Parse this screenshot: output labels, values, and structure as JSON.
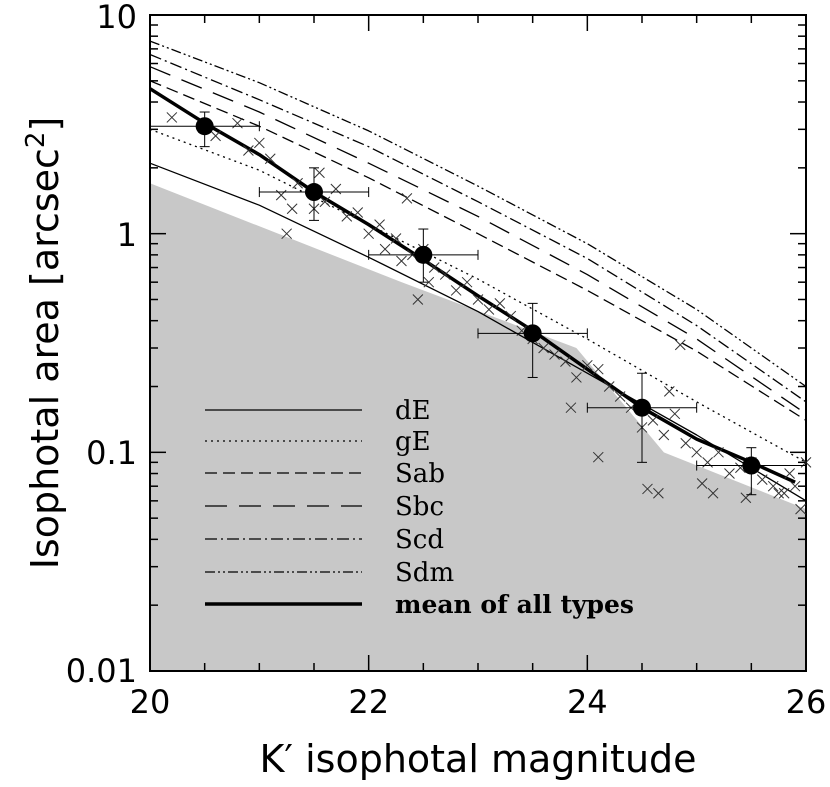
{
  "chart_data": {
    "type": "line",
    "xlabel": "K′ isophotal magnitude",
    "ylabel": "Isophotal area [arcsec",
    "ylabel_sup": "2",
    "ylabel_end": "]",
    "xlim": [
      20,
      26
    ],
    "ylim": [
      0.01,
      10
    ],
    "yscale": "log",
    "x_ticks": [
      20,
      22,
      24,
      26
    ],
    "x_tick_labels": [
      "20",
      "22",
      "24",
      "26"
    ],
    "y_ticks": [
      0.01,
      0.1,
      1,
      10
    ],
    "y_tick_labels": [
      "0.01",
      "0.1",
      "1",
      "10"
    ],
    "shaded_region": {
      "description": "excluded region",
      "boundary_x": [
        20,
        22.3,
        23.9,
        24.7,
        26
      ],
      "boundary_y": [
        1.7,
        0.6,
        0.3,
        0.1,
        0.055
      ]
    },
    "series": [
      {
        "name": "dE",
        "style": "solid",
        "width": 1.3,
        "x": [
          20,
          21,
          22,
          23,
          24,
          25,
          26
        ],
        "y": [
          2.1,
          1.35,
          0.78,
          0.44,
          0.23,
          0.12,
          0.06
        ]
      },
      {
        "name": "gE",
        "style": "dotted",
        "width": 1.3,
        "x": [
          20,
          21,
          22,
          23,
          24,
          25,
          26
        ],
        "y": [
          3.0,
          1.95,
          1.1,
          0.62,
          0.33,
          0.17,
          0.09
        ]
      },
      {
        "name": "Sab",
        "style": "dashed",
        "width": 1.3,
        "x": [
          20,
          21,
          22,
          23,
          24,
          25,
          26
        ],
        "y": [
          5.0,
          3.1,
          1.8,
          1.0,
          0.55,
          0.29,
          0.14
        ]
      },
      {
        "name": "Sbc",
        "style": "long-dashed",
        "width": 1.3,
        "x": [
          20,
          21,
          22,
          23,
          24,
          25,
          26
        ],
        "y": [
          5.8,
          3.6,
          2.1,
          1.2,
          0.65,
          0.33,
          0.15
        ]
      },
      {
        "name": "Scd",
        "style": "dash-dot",
        "width": 1.3,
        "x": [
          20,
          21,
          22,
          23,
          24,
          25,
          26
        ],
        "y": [
          6.6,
          4.1,
          2.5,
          1.4,
          0.77,
          0.38,
          0.17
        ]
      },
      {
        "name": "Sdm",
        "style": "dash-dot-dot",
        "width": 1.3,
        "x": [
          20,
          21,
          22,
          23,
          24,
          25,
          26
        ],
        "y": [
          7.6,
          4.9,
          2.95,
          1.65,
          0.9,
          0.45,
          0.2
        ]
      },
      {
        "name": "mean of all types",
        "style": "solid",
        "width": 3.5,
        "x": [
          20,
          20.5,
          21,
          21.5,
          22,
          22.5,
          23,
          23.5,
          24,
          24.5,
          25,
          25.5,
          25.9
        ],
        "y": [
          4.6,
          3.2,
          2.3,
          1.55,
          1.1,
          0.76,
          0.52,
          0.36,
          0.24,
          0.16,
          0.115,
          0.09,
          0.073
        ]
      }
    ],
    "binned_means": [
      {
        "x": 20.5,
        "y": 3.1,
        "xerr": 0.5,
        "ylow": 2.5,
        "yhigh": 3.6
      },
      {
        "x": 21.5,
        "y": 1.55,
        "xerr": 0.5,
        "ylow": 1.15,
        "yhigh": 2.0
      },
      {
        "x": 22.5,
        "y": 0.8,
        "xerr": 0.5,
        "ylow": 0.6,
        "yhigh": 1.05
      },
      {
        "x": 23.5,
        "y": 0.35,
        "xerr": 0.5,
        "ylow": 0.22,
        "yhigh": 0.48
      },
      {
        "x": 24.5,
        "y": 0.16,
        "xerr": 0.5,
        "ylow": 0.09,
        "yhigh": 0.23
      },
      {
        "x": 25.5,
        "y": 0.087,
        "xerr": 0.5,
        "ylow": 0.064,
        "yhigh": 0.105
      }
    ],
    "scatter_points": {
      "marker": "x",
      "x": [
        20.2,
        20.6,
        20.8,
        20.9,
        21.0,
        21.1,
        21.2,
        21.25,
        21.35,
        21.5,
        21.55,
        21.6,
        21.7,
        21.8,
        21.9,
        22.0,
        22.1,
        22.15,
        22.25,
        22.3,
        22.4,
        22.45,
        22.5,
        22.55,
        22.6,
        22.7,
        22.8,
        22.9,
        23.0,
        23.1,
        23.2,
        23.3,
        23.4,
        23.5,
        23.6,
        23.7,
        23.8,
        23.9,
        24.0,
        24.1,
        24.2,
        24.3,
        24.4,
        24.5,
        24.6,
        24.7,
        24.8,
        24.9,
        25.0,
        25.1,
        25.2,
        25.3,
        25.4,
        25.5,
        25.6,
        25.7,
        25.8,
        25.9,
        26.0,
        21.3,
        22.35,
        23.85,
        24.1,
        24.55,
        24.65,
        24.75,
        25.05,
        25.15,
        25.45,
        25.75,
        25.95,
        24.85,
        25.85
      ],
      "y": [
        3.4,
        2.8,
        3.2,
        2.4,
        2.6,
        2.2,
        1.5,
        1.0,
        1.7,
        1.3,
        1.9,
        1.4,
        1.6,
        1.2,
        1.25,
        1.0,
        1.1,
        0.85,
        0.95,
        0.75,
        0.8,
        0.5,
        0.85,
        0.6,
        0.7,
        0.65,
        0.55,
        0.6,
        0.5,
        0.45,
        0.48,
        0.42,
        0.36,
        0.33,
        0.3,
        0.28,
        0.26,
        0.22,
        0.25,
        0.24,
        0.2,
        0.18,
        0.16,
        0.13,
        0.14,
        0.12,
        0.15,
        0.11,
        0.1,
        0.09,
        0.1,
        0.08,
        0.085,
        0.09,
        0.075,
        0.07,
        0.065,
        0.07,
        0.09,
        1.3,
        1.45,
        0.16,
        0.095,
        0.068,
        0.065,
        0.19,
        0.072,
        0.065,
        0.062,
        0.065,
        0.055,
        0.31,
        0.08
      ]
    },
    "legend": {
      "placement": "lower-left inside",
      "entries": [
        "dE",
        "gE",
        "Sab",
        "Sbc",
        "Scd",
        "Sdm",
        "mean of all types"
      ]
    }
  }
}
